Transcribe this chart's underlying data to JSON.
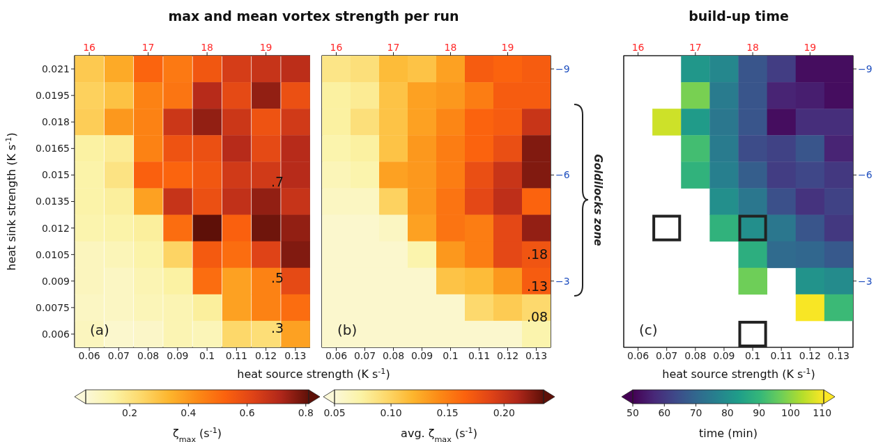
{
  "chart_data": [
    {
      "type": "heatmap",
      "title": "max and mean vortex strength per run",
      "xlabel": "heat source strength (K s$^{-1}$)",
      "ylabel": "heat sink strength (K s$^{-1}$)",
      "clabel": "ζ$_{max}$ (s$^{-1}$)",
      "categories": [
        "0.06",
        "0.07",
        "0.08",
        "0.09",
        "0.1",
        "0.11",
        "0.12",
        "0.13"
      ],
      "y_categories": [
        "0.021",
        "0.0195",
        "0.018",
        "0.0165",
        "0.015",
        "0.0135",
        "0.012",
        "0.0105",
        "0.009",
        "0.0075",
        "0.006"
      ],
      "cells": [
        [
          0.28,
          0.36,
          0.52,
          0.47,
          0.56,
          0.64,
          0.67,
          0.69
        ],
        [
          0.26,
          0.3,
          0.45,
          0.48,
          0.7,
          0.6,
          0.75,
          0.58
        ],
        [
          0.27,
          0.4,
          0.45,
          0.66,
          0.75,
          0.66,
          0.57,
          0.65
        ],
        [
          0.15,
          0.17,
          0.45,
          0.57,
          0.58,
          0.7,
          0.6,
          0.7
        ],
        [
          0.14,
          0.2,
          0.53,
          0.52,
          0.56,
          0.65,
          0.65,
          0.7
        ],
        [
          0.14,
          0.16,
          0.38,
          0.67,
          0.58,
          0.68,
          0.75,
          0.67
        ],
        [
          0.13,
          0.14,
          0.16,
          0.5,
          0.81,
          0.53,
          0.79,
          0.75
        ],
        [
          0.1,
          0.11,
          0.14,
          0.25,
          0.55,
          0.5,
          0.62,
          0.77
        ],
        [
          0.1,
          0.09,
          0.12,
          0.15,
          0.5,
          0.38,
          0.45,
          0.6
        ],
        [
          0.09,
          0.09,
          0.11,
          0.12,
          0.16,
          0.38,
          0.45,
          0.5
        ],
        [
          0.1,
          0.07,
          0.08,
          0.12,
          0.11,
          0.24,
          0.22,
          0.38
        ]
      ],
      "clim": [
        0.05,
        0.81
      ],
      "cticks": [
        0.2,
        0.4,
        0.6,
        0.8
      ],
      "x2lim": [
        15.75,
        19.75
      ],
      "x2ticks": [
        16,
        17,
        18,
        19
      ],
      "annotations": [
        "(a)",
        ".7",
        ".5",
        ".3"
      ]
    },
    {
      "type": "heatmap",
      "clabel": "avg. ζ$_{max}$ (s$^{-1}$)",
      "categories": [
        "0.06",
        "0.07",
        "0.08",
        "0.09",
        "0.1",
        "0.11",
        "0.12",
        "0.13"
      ],
      "y_categories": [
        "0.021",
        "0.0195",
        "0.018",
        "0.0165",
        "0.015",
        "0.0135",
        "0.012",
        "0.0105",
        "0.009",
        "0.0075",
        "0.006"
      ],
      "cells": [
        [
          0.085,
          0.09,
          0.115,
          0.11,
          0.13,
          0.17,
          0.165,
          0.17
        ],
        [
          0.075,
          0.08,
          0.11,
          0.13,
          0.135,
          0.15,
          0.17,
          0.17
        ],
        [
          0.075,
          0.09,
          0.11,
          0.13,
          0.145,
          0.165,
          0.17,
          0.2
        ],
        [
          0.07,
          0.075,
          0.11,
          0.135,
          0.15,
          0.165,
          0.18,
          0.225
        ],
        [
          0.065,
          0.07,
          0.13,
          0.135,
          0.15,
          0.18,
          0.2,
          0.225
        ],
        [
          0.06,
          0.06,
          0.1,
          0.135,
          0.155,
          0.185,
          0.205,
          0.165
        ],
        [
          0.055,
          0.055,
          0.06,
          0.13,
          0.155,
          0.15,
          0.185,
          0.22
        ],
        [
          0.055,
          0.055,
          0.055,
          0.07,
          0.135,
          0.15,
          0.185,
          0.175
        ],
        [
          0.055,
          0.055,
          0.055,
          0.055,
          0.11,
          0.115,
          0.135,
          0.17
        ],
        [
          0.055,
          0.055,
          0.055,
          0.055,
          0.055,
          0.095,
          0.105,
          0.095
        ],
        [
          0.055,
          0.055,
          0.055,
          0.055,
          0.055,
          0.055,
          0.055,
          0.07
        ]
      ],
      "clim": [
        0.05,
        0.235
      ],
      "cticks": [
        0.05,
        {
          "value": 0.1,
          "label": "0.10"
        },
        0.15,
        {
          "value": 0.2,
          "label": "0.20"
        }
      ],
      "x2lim": [
        15.75,
        19.75
      ],
      "x2ticks": [
        16,
        17,
        18,
        19
      ],
      "y2lim": [
        -1.125,
        -9.375
      ],
      "y2ticks": [
        {
          "value": -9,
          "label": "−9"
        },
        {
          "value": -6,
          "label": "−6"
        },
        {
          "value": -3,
          "label": "−3"
        }
      ],
      "tick_labels": "x",
      "annotations": [
        "(b)",
        "Goldilocks zone",
        ".18",
        ".13",
        ".08"
      ]
    },
    {
      "type": "heatmap",
      "title": "build-up time",
      "xlabel": "heat source strength (K s$^{-1}$)",
      "clabel": "time (min)",
      "categories": [
        "0.06",
        "0.07",
        "0.08",
        "0.09",
        "0.1",
        "0.11",
        "0.12",
        "0.13"
      ],
      "y_categories": [
        "0.021",
        "0.0195",
        "0.018",
        "0.0165",
        "0.015",
        "0.0135",
        "0.012",
        "0.0105",
        "0.009",
        "0.0075",
        "0.006"
      ],
      "cells": [
        [
          null,
          null,
          82,
          78,
          66,
          61,
          52,
          52
        ],
        [
          null,
          null,
          98,
          75,
          66,
          56,
          55,
          52
        ],
        [
          null,
          106,
          83,
          74,
          66,
          52,
          58,
          58
        ],
        [
          null,
          null,
          92,
          75,
          64,
          62,
          66,
          56
        ],
        [
          null,
          null,
          89,
          76,
          68,
          61,
          63,
          60
        ],
        [
          null,
          null,
          null,
          80,
          74,
          65,
          59,
          62
        ],
        [
          null,
          null,
          null,
          89,
          80,
          74,
          66,
          60
        ],
        [
          null,
          null,
          null,
          null,
          88,
          71,
          70,
          67
        ],
        [
          null,
          null,
          null,
          null,
          97,
          null,
          81,
          79
        ],
        [
          null,
          null,
          null,
          null,
          null,
          null,
          110,
          91
        ],
        [
          null,
          null,
          null,
          null,
          null,
          null,
          null,
          null
        ]
      ],
      "clim": [
        50,
        110.5
      ],
      "cticks": [
        50,
        60,
        70,
        80,
        90,
        100,
        110
      ],
      "x2lim": [
        15.75,
        19.75
      ],
      "x2ticks": [
        16,
        17,
        18,
        19
      ],
      "y2lim": [
        -1.125,
        -9.375
      ],
      "y2ticks": [
        {
          "value": -9,
          "label": "−9"
        },
        {
          "value": -6,
          "label": "−6"
        },
        {
          "value": -3,
          "label": "−3"
        }
      ],
      "tick_labels": "x",
      "annotations": [
        "(c)"
      ]
    }
  ]
}
